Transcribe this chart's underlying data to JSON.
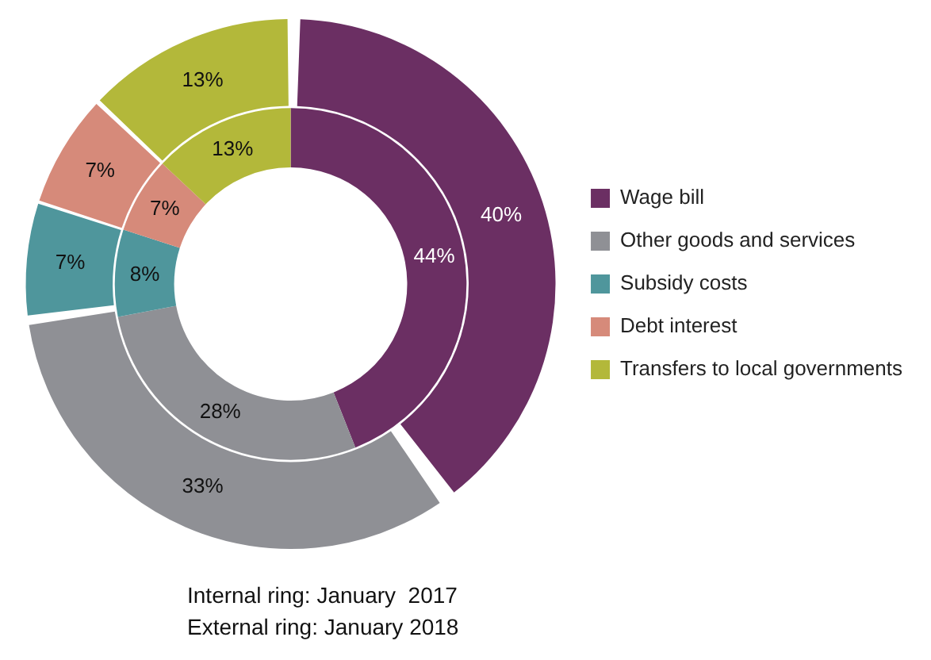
{
  "chart_data": {
    "type": "donut",
    "categories": [
      "Wage bill",
      "Other goods and services",
      "Subsidy costs",
      "Debt interest",
      "Transfers to local governments"
    ],
    "colors": [
      "#6b2f63",
      "#8f9095",
      "#4f969c",
      "#d68a7a",
      "#b3b83a"
    ],
    "series": [
      {
        "values": [
          44,
          28,
          8,
          7,
          13
        ],
        "value_labels": [
          "44%",
          "28%",
          "8%",
          "7%",
          "13%"
        ]
      },
      {
        "values": [
          40,
          33,
          7,
          7,
          13
        ],
        "value_labels": [
          "40%",
          "33%",
          "7%",
          "7%",
          "13%"
        ]
      }
    ],
    "legend": "right",
    "annotations": [
      "Internal ring: January  2017",
      "External ring: January 2018"
    ]
  }
}
